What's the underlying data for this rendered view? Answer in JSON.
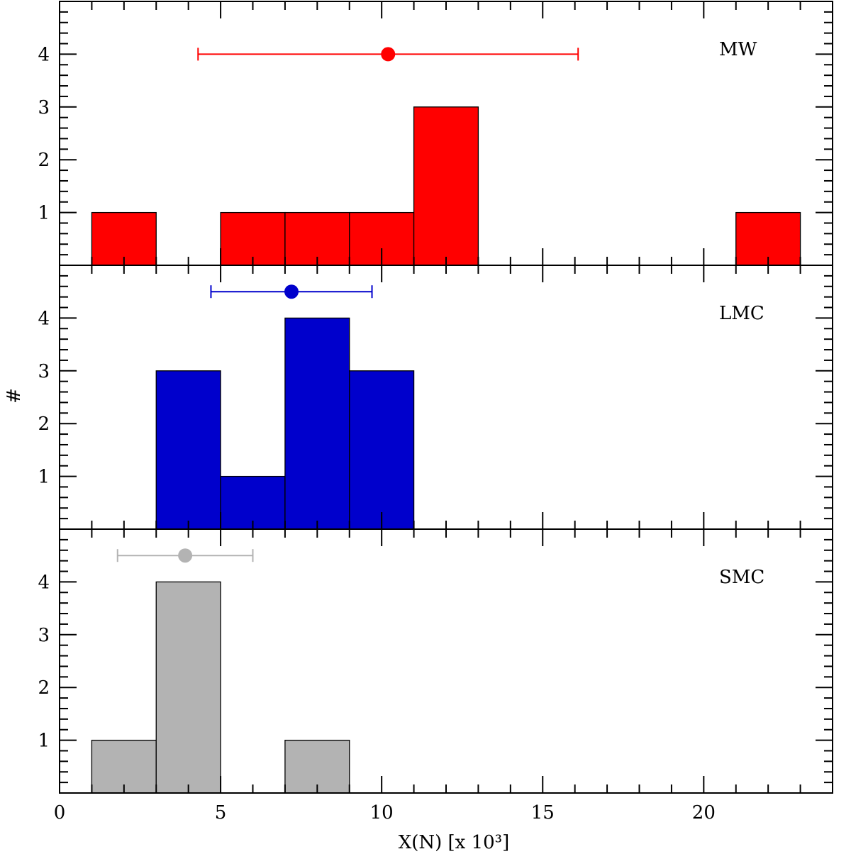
{
  "chart_data": {
    "type": "bar",
    "subtype": "stacked-panel-histogram",
    "xlabel": "X(N) [x 10³]",
    "ylabel": "#",
    "xlim": [
      0,
      24
    ],
    "x_ticks": [
      0,
      5,
      10,
      15,
      20
    ],
    "bin_width": 2,
    "panels": [
      {
        "label": "MW",
        "color": "#ff0000",
        "ylim": [
          0,
          5
        ],
        "y_ticks": [
          1,
          2,
          3,
          4
        ],
        "bins": [
          {
            "x0": 1,
            "x1": 3,
            "count": 1
          },
          {
            "x0": 5,
            "x1": 7,
            "count": 1
          },
          {
            "x0": 7,
            "x1": 9,
            "count": 1
          },
          {
            "x0": 9,
            "x1": 11,
            "count": 1
          },
          {
            "x0": 11,
            "x1": 13,
            "count": 3
          },
          {
            "x0": 21,
            "x1": 23,
            "count": 1
          }
        ],
        "mean": {
          "x": 10.2,
          "xerr_low": 4.3,
          "xerr_high": 16.1,
          "y": 4
        }
      },
      {
        "label": "LMC",
        "color": "#0000cc",
        "ylim": [
          0,
          5
        ],
        "y_ticks": [
          1,
          2,
          3,
          4
        ],
        "bins": [
          {
            "x0": 3,
            "x1": 5,
            "count": 3
          },
          {
            "x0": 5,
            "x1": 7,
            "count": 1
          },
          {
            "x0": 7,
            "x1": 9,
            "count": 4
          },
          {
            "x0": 9,
            "x1": 11,
            "count": 3
          }
        ],
        "mean": {
          "x": 7.2,
          "xerr_low": 4.7,
          "xerr_high": 9.7,
          "y": 4.5
        }
      },
      {
        "label": "SMC",
        "color": "#b3b3b3",
        "ylim": [
          0,
          5
        ],
        "y_ticks": [
          1,
          2,
          3,
          4
        ],
        "bins": [
          {
            "x0": 1,
            "x1": 3,
            "count": 1
          },
          {
            "x0": 3,
            "x1": 5,
            "count": 4
          },
          {
            "x0": 7,
            "x1": 9,
            "count": 1
          }
        ],
        "mean": {
          "x": 3.9,
          "xerr_low": 1.8,
          "xerr_high": 6.0,
          "y": 4.5
        }
      }
    ]
  }
}
